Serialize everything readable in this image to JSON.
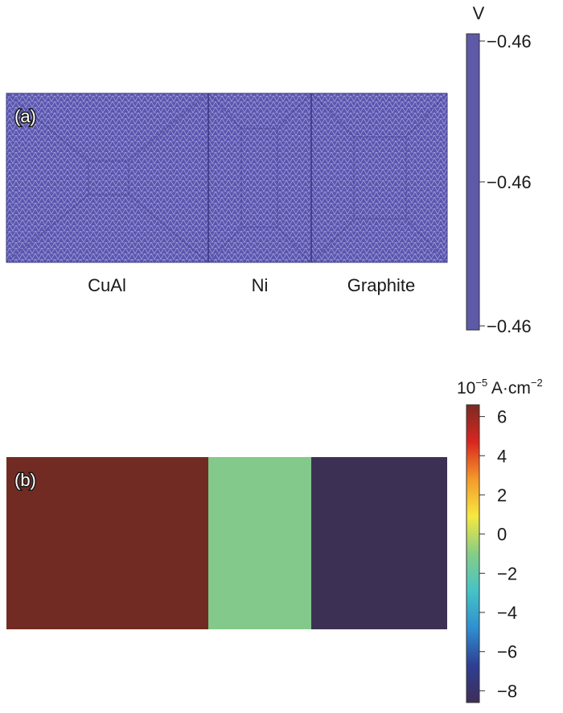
{
  "panel_a": {
    "label": "(a)",
    "colorbar": {
      "unit": "V",
      "ticks": [
        "−0.46",
        "−0.46",
        "−0.46"
      ],
      "color": "#5e5aa8"
    },
    "fill_color": "#5b57b0",
    "regions": [
      {
        "name": "CuAl",
        "label": "CuAl"
      },
      {
        "name": "Ni",
        "label": "Ni"
      },
      {
        "name": "Graphite",
        "label": "Graphite"
      }
    ]
  },
  "panel_b": {
    "label": "(b)",
    "colorbar": {
      "unit_prefix": "10",
      "unit_exp": "−5",
      "unit_mid": " A·cm",
      "unit_exp2": "−2",
      "ticks": [
        "6",
        "4",
        "2",
        "0",
        "−2",
        "−4",
        "−6",
        "−8"
      ],
      "tick_values": [
        6,
        4,
        2,
        0,
        -2,
        -4,
        -6,
        -8
      ],
      "range": [
        -8.6,
        6.6
      ],
      "colormap": [
        "#3f2d58",
        "#2d3f93",
        "#2f8fd0",
        "#45c3c6",
        "#86cd86",
        "#f6e840",
        "#f49a2a",
        "#d9261f",
        "#7a2a23"
      ]
    },
    "regions": [
      {
        "name": "CuAl",
        "color": "#722b22"
      },
      {
        "name": "Ni",
        "color": "#82c98b"
      },
      {
        "name": "Graphite",
        "color": "#3c3155"
      }
    ]
  }
}
